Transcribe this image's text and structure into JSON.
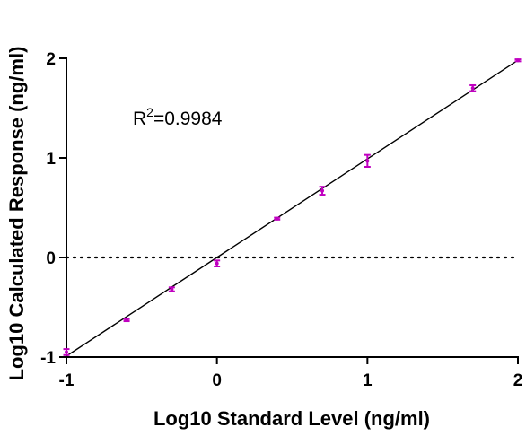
{
  "chart_data": {
    "type": "scatter",
    "title": "",
    "xlabel": "Log10 Standard Level (ng/ml)",
    "ylabel": "Log10 Calculated Response (ng/ml)",
    "xlim": [
      -1,
      2
    ],
    "ylim": [
      -1,
      2
    ],
    "xticks": [
      "-1",
      "0",
      "1",
      "2"
    ],
    "yticks": [
      "-1",
      "0",
      "1",
      "2"
    ],
    "grid": false,
    "legend": "none",
    "marker_color": "#c000c0",
    "series": [
      {
        "points": [
          {
            "x": -1.0,
            "y": -0.95,
            "err": 0.03
          },
          {
            "x": -0.6,
            "y": -0.63,
            "err": 0.01
          },
          {
            "x": -0.3,
            "y": -0.32,
            "err": 0.02
          },
          {
            "x": 0.0,
            "y": -0.06,
            "err": 0.03
          },
          {
            "x": 0.4,
            "y": 0.39,
            "err": 0.01
          },
          {
            "x": 0.7,
            "y": 0.67,
            "err": 0.04
          },
          {
            "x": 1.0,
            "y": 0.97,
            "err": 0.06
          },
          {
            "x": 1.7,
            "y": 1.7,
            "err": 0.03
          },
          {
            "x": 2.0,
            "y": 1.98,
            "err": 0.01
          }
        ]
      }
    ],
    "fit_line": {
      "slope": 0.99,
      "intercept": 0.0
    },
    "reference_line": {
      "y": 0,
      "style": "dotted"
    },
    "annotation": {
      "prefix": "R",
      "superscript": "2",
      "text": "=0.9984"
    }
  }
}
